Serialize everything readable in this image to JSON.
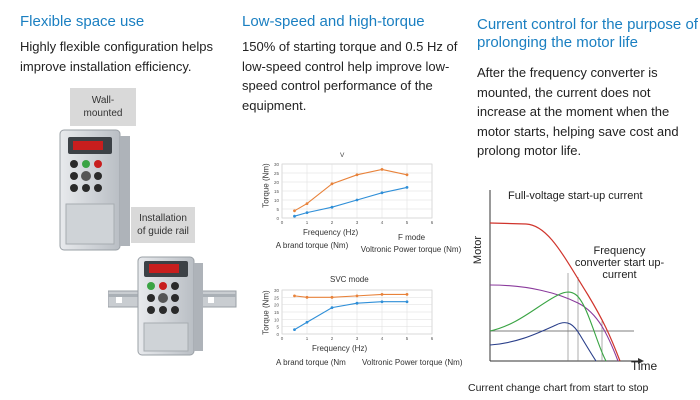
{
  "col1": {
    "title": "Flexible space use",
    "body": "Highly flexible configuration helps improve installation efficiency.",
    "label_wall": "Wall-mounted",
    "label_rail": "Installation of guide rail"
  },
  "col2": {
    "title": "Low-speed and high-torque",
    "body": "150% of starting torque and 0.5 Hz of low-speed control help improve low-speed control performance of the equipment."
  },
  "col3": {
    "title": "Current control for the purpose of prolonging the motor life",
    "body": "After the frequency converter is mounted, the current does not increase at the moment when the motor starts, helping save cost and prolong motor life."
  },
  "chart_data": [
    {
      "type": "line",
      "title": "V",
      "xlabel": "Frequency (Hz)",
      "ylabel": "Torque (Nm)",
      "mode_label": "F mode",
      "x": [
        0.5,
        1,
        2,
        3,
        4,
        5
      ],
      "xlim": [
        0,
        6
      ],
      "ylim": [
        0,
        30
      ],
      "xticks": [
        "0",
        "1",
        "2",
        "3",
        "4",
        "5",
        "6"
      ],
      "yticks": [
        "0",
        "5",
        "10",
        "15",
        "20",
        "25",
        "30"
      ],
      "series": [
        {
          "name": "A brand torque (Nm)",
          "color": "#2f8fd8",
          "values": [
            1,
            3,
            6,
            10,
            14,
            17
          ]
        },
        {
          "name": "Voltronic Power torque (Nm)",
          "color": "#e8823a",
          "values": [
            4,
            8,
            19,
            24,
            27,
            24
          ]
        }
      ]
    },
    {
      "type": "line",
      "title": "SVC mode",
      "xlabel": "Frequency (Hz)",
      "ylabel": "Torque (Nm)",
      "x": [
        0.5,
        1,
        2,
        3,
        4,
        5
      ],
      "xlim": [
        0,
        6
      ],
      "ylim": [
        0,
        30
      ],
      "xticks": [
        "0",
        "1",
        "2",
        "3",
        "4",
        "5",
        "6"
      ],
      "yticks": [
        "0",
        "5",
        "10",
        "15",
        "20",
        "25",
        "30"
      ],
      "series": [
        {
          "name": "A brand torque (Nm",
          "color": "#2f8fd8",
          "values": [
            3,
            8,
            18,
            21,
            22,
            22
          ]
        },
        {
          "name": "Voltronic Power torque (Nm)",
          "color": "#e8823a",
          "values": [
            26,
            25,
            25,
            26,
            27,
            27
          ]
        }
      ]
    },
    {
      "type": "line",
      "title": "",
      "caption": "Current change chart from start to stop",
      "ylabel": "Motor",
      "xlabel": "Time",
      "annotations": [
        "Full-voltage start-up current",
        "Frequency converter start up-current"
      ],
      "series": [
        {
          "name": "red",
          "color": "#d0342c"
        },
        {
          "name": "purple",
          "color": "#8a3a9c"
        },
        {
          "name": "green",
          "color": "#3aa444"
        },
        {
          "name": "blue",
          "color": "#2a3f8a"
        }
      ]
    }
  ]
}
